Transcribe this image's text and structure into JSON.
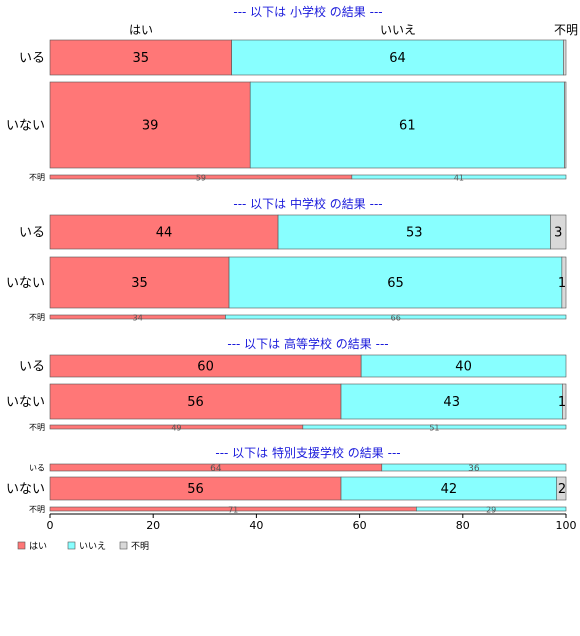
{
  "chart_data": {
    "type": "bar",
    "orientation": "horizontal",
    "stacked": "percent",
    "xlim": [
      0,
      100
    ],
    "x_ticks": [
      "0",
      "20",
      "40",
      "60",
      "80",
      "100"
    ],
    "top_labels": [
      "はい",
      "いいえ",
      "不明"
    ],
    "series": [
      {
        "name": "はい",
        "color": "#ff7777"
      },
      {
        "name": "いいえ",
        "color": "#88ffff"
      },
      {
        "name": "不明",
        "color": "#d9d9d9"
      }
    ],
    "legend": {
      "position": "bottom-left",
      "labels": [
        "はい",
        "いいえ",
        "不明"
      ]
    },
    "panels": [
      {
        "title": "--- 以下は 小学校 の結果 ---",
        "rows": [
          {
            "label": "いる",
            "values": [
              35.2,
              64.3,
              0.5
            ],
            "labels": [
              "35",
              "64",
              ""
            ]
          },
          {
            "label": "いない",
            "values": [
              38.8,
              60.9,
              0.3
            ],
            "labels": [
              "39",
              "61",
              ""
            ]
          },
          {
            "label": "不明",
            "values": [
              58.5,
              41.5,
              0
            ],
            "labels": [
              "59",
              "41",
              ""
            ]
          }
        ]
      },
      {
        "title": "--- 以下は 中学校 の結果 ---",
        "rows": [
          {
            "label": "いる",
            "values": [
              44.2,
              52.8,
              3.0
            ],
            "labels": [
              "44",
              "53",
              "3"
            ]
          },
          {
            "label": "いない",
            "values": [
              34.7,
              64.5,
              0.8
            ],
            "labels": [
              "35",
              "65",
              "1"
            ]
          },
          {
            "label": "不明",
            "values": [
              34.0,
              66.0,
              0
            ],
            "labels": [
              "34",
              "66",
              ""
            ]
          }
        ]
      },
      {
        "title": "--- 以下は 高等学校 の結果 ---",
        "rows": [
          {
            "label": "いる",
            "values": [
              60.3,
              39.7,
              0
            ],
            "labels": [
              "60",
              "40",
              ""
            ]
          },
          {
            "label": "いない",
            "values": [
              56.4,
              42.9,
              0.7
            ],
            "labels": [
              "56",
              "43",
              "1"
            ]
          },
          {
            "label": "不明",
            "values": [
              49.0,
              51.0,
              0
            ],
            "labels": [
              "49",
              "51",
              ""
            ]
          }
        ]
      },
      {
        "title": "--- 以下は 特別支援学校 の結果 ---",
        "rows": [
          {
            "label": "いる",
            "values": [
              64.3,
              35.7,
              0
            ],
            "labels": [
              "64",
              "36",
              ""
            ]
          },
          {
            "label": "いない",
            "values": [
              56.4,
              41.8,
              1.8
            ],
            "labels": [
              "56",
              "42",
              "2"
            ]
          },
          {
            "label": "不明",
            "values": [
              71.0,
              29.0,
              0
            ],
            "labels": [
              "71",
              "29",
              ""
            ]
          }
        ]
      }
    ]
  }
}
